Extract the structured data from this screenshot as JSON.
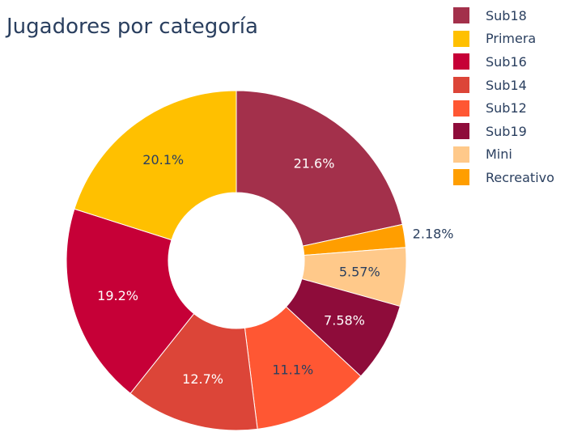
{
  "chart_data": {
    "type": "pie",
    "title": "Jugadores por categoría",
    "hole": true,
    "direction": "clockwise",
    "legend_placement": "top-right",
    "slices": [
      {
        "label": "Sub18",
        "value": 21.6,
        "text": "21.6%",
        "color": "#a3304b",
        "text_color": "#ffffff",
        "text_outside": false
      },
      {
        "label": "Recreativo",
        "value": 2.18,
        "text": "2.18%",
        "color": "#ff9e00",
        "text_color": "#2a3f5f",
        "text_outside": true
      },
      {
        "label": "Mini",
        "value": 5.57,
        "text": "5.57%",
        "color": "#ffc98a",
        "text_color": "#2a3f5f",
        "text_outside": false
      },
      {
        "label": "Sub19",
        "value": 7.58,
        "text": "7.58%",
        "color": "#8e0c3a",
        "text_color": "#ffffff",
        "text_outside": false
      },
      {
        "label": "Sub12",
        "value": 11.1,
        "text": "11.1%",
        "color": "#ff5733",
        "text_color": "#2a3f5f",
        "text_outside": false
      },
      {
        "label": "Sub14",
        "value": 12.7,
        "text": "12.7%",
        "color": "#dc4538",
        "text_color": "#ffffff",
        "text_outside": false
      },
      {
        "label": "Sub16",
        "value": 19.2,
        "text": "19.2%",
        "color": "#c60037",
        "text_color": "#ffffff",
        "text_outside": false
      },
      {
        "label": "Primera",
        "value": 20.1,
        "text": "20.1%",
        "color": "#ffc000",
        "text_color": "#2a3f5f",
        "text_outside": false
      }
    ],
    "legend": [
      {
        "label": "Sub18",
        "color": "#a3304b"
      },
      {
        "label": "Primera",
        "color": "#ffc000"
      },
      {
        "label": "Sub16",
        "color": "#c60037"
      },
      {
        "label": "Sub14",
        "color": "#dc4538"
      },
      {
        "label": "Sub12",
        "color": "#ff5733"
      },
      {
        "label": "Sub19",
        "color": "#8e0c3a"
      },
      {
        "label": "Mini",
        "color": "#ffc98a"
      },
      {
        "label": "Recreativo",
        "color": "#ff9e00"
      }
    ]
  }
}
